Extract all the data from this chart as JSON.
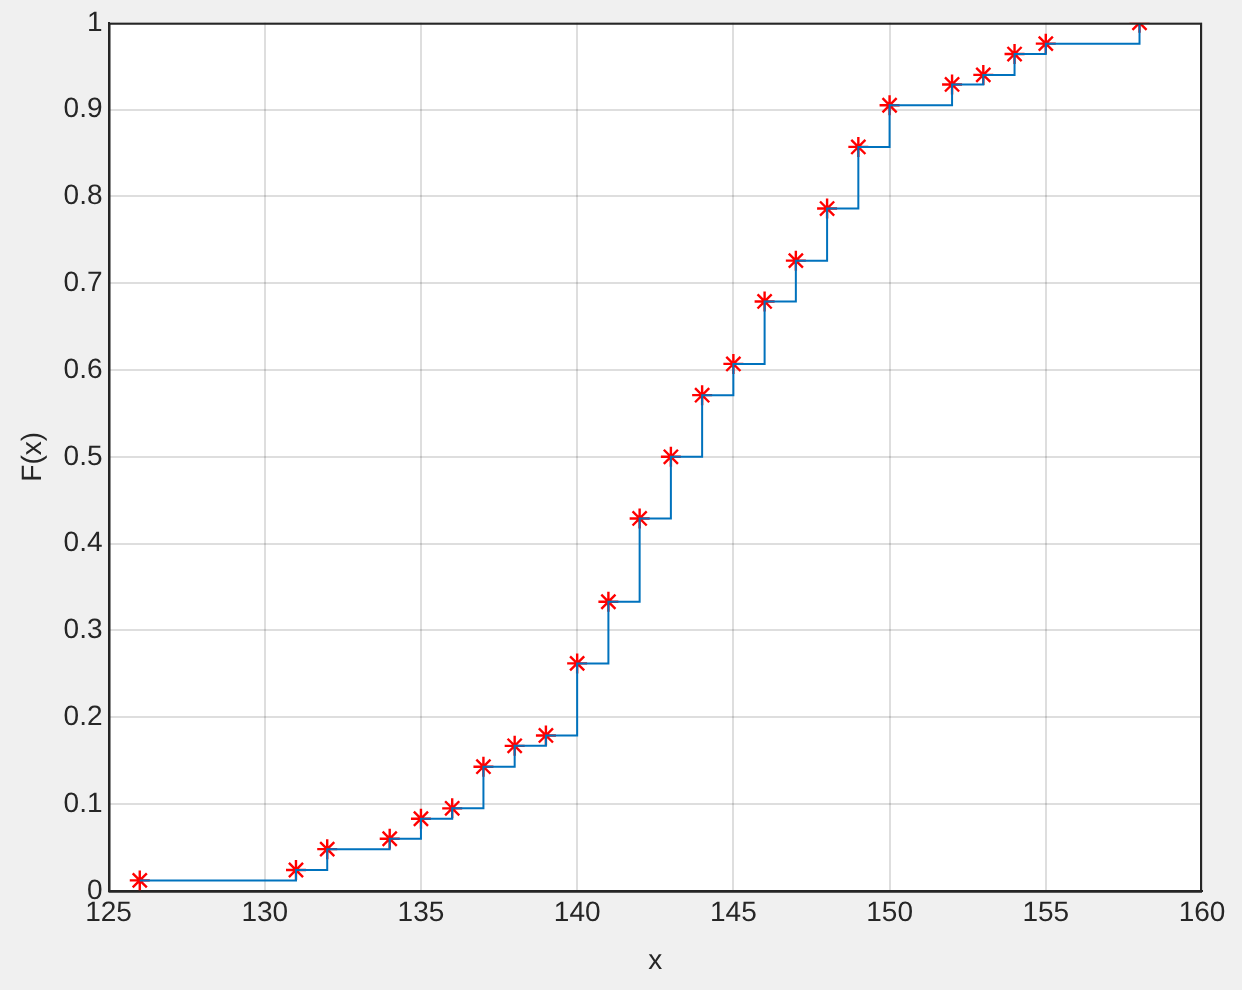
{
  "chart_data": {
    "type": "step",
    "xlabel": "x",
    "ylabel": "F(x)",
    "xlim": [
      125,
      160
    ],
    "xticks": [
      125,
      130,
      135,
      140,
      145,
      150,
      155,
      160
    ],
    "ylim": [
      0,
      1
    ],
    "yticks": [
      0,
      0.1,
      0.2,
      0.3,
      0.4,
      0.5,
      0.6,
      0.7,
      0.8,
      0.9,
      1
    ],
    "grid": true,
    "legend": false,
    "x": [
      126,
      131,
      132,
      134,
      135,
      136,
      137,
      138,
      139,
      140,
      141,
      142,
      143,
      144,
      145,
      146,
      147,
      148,
      149,
      150,
      152,
      153,
      154,
      155,
      158
    ],
    "series": [
      {
        "color": "#0072bd",
        "line_style": "solid",
        "marker": "none",
        "values": [
          0.012,
          0.024,
          0.048,
          0.06,
          0.083,
          0.095,
          0.143,
          0.167,
          0.179,
          0.262,
          0.333,
          0.429,
          0.5,
          0.571,
          0.607,
          0.679,
          0.726,
          0.786,
          0.857,
          0.905,
          0.929,
          0.94,
          0.964,
          0.976,
          1
        ]
      },
      {
        "type": "scatter",
        "color": "#ff0000",
        "marker": "cross",
        "values": [
          0.012,
          0.024,
          0.048,
          0.06,
          0.083,
          0.095,
          0.143,
          0.167,
          0.179,
          0.262,
          0.333,
          0.429,
          0.5,
          0.571,
          0.607,
          0.679,
          0.726,
          0.786,
          0.857,
          0.905,
          0.929,
          0.94,
          0.964,
          0.976,
          1
        ]
      }
    ]
  }
}
